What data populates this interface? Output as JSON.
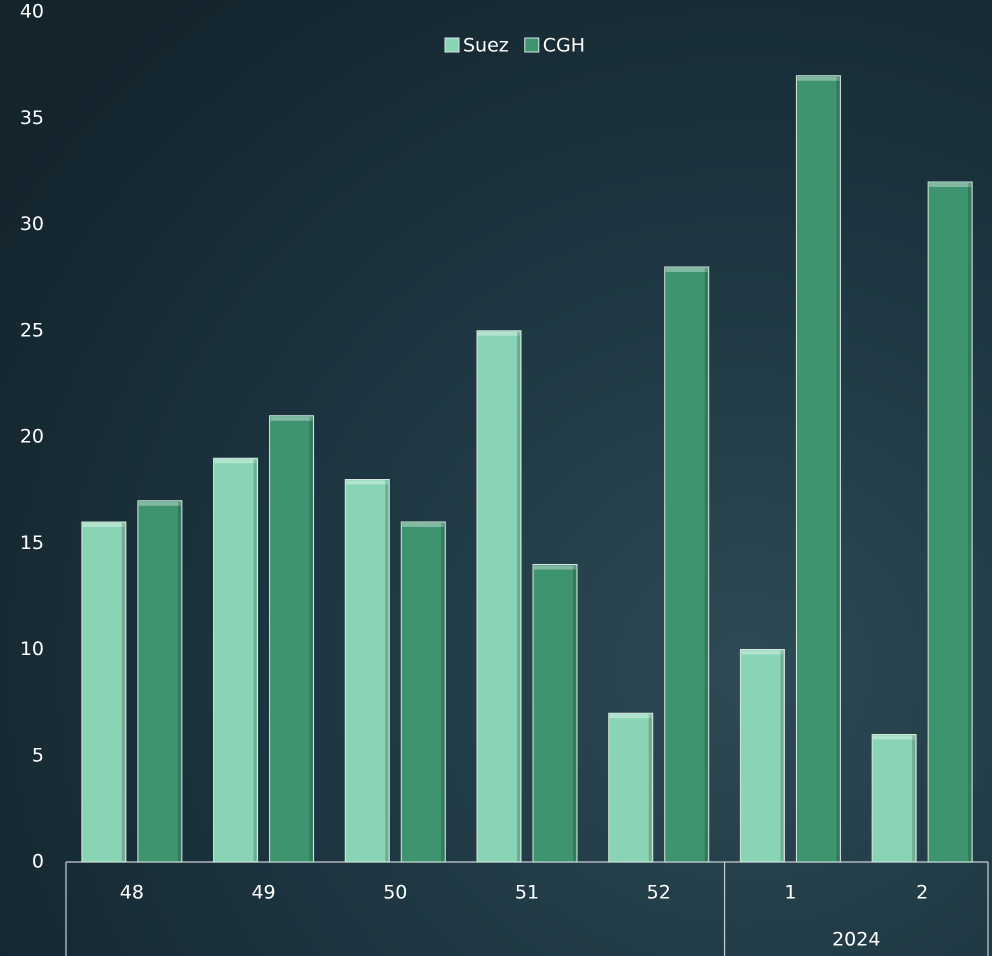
{
  "chart_data": {
    "type": "bar",
    "categories": [
      "48",
      "49",
      "50",
      "51",
      "52",
      "1",
      "2"
    ],
    "category_groups": [
      {
        "label": "2024",
        "span": [
          5,
          6
        ]
      }
    ],
    "series": [
      {
        "name": "Suez",
        "color": "#88d4b4",
        "values": [
          16,
          19,
          18,
          25,
          7,
          10,
          6
        ]
      },
      {
        "name": "CGH",
        "color": "#3f9470",
        "values": [
          17,
          21,
          16,
          14,
          28,
          37,
          32
        ]
      }
    ],
    "ylim": [
      0,
      40
    ],
    "yticks": [
      0,
      5,
      10,
      15,
      20,
      25,
      30,
      35,
      40
    ],
    "grid": false,
    "legend": "top"
  }
}
